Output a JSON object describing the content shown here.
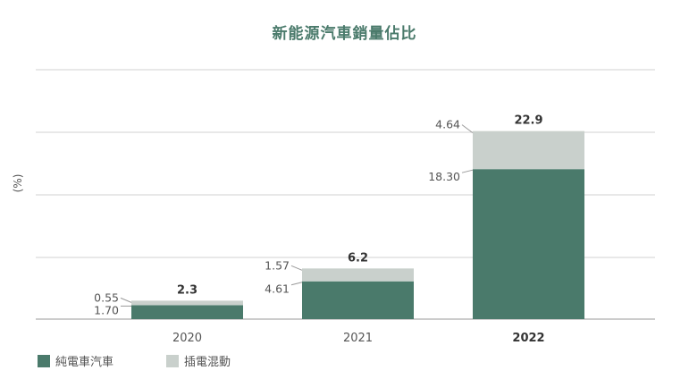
{
  "chart_data": {
    "type": "bar",
    "stacked": true,
    "title": "新能源汽車銷量佔比",
    "ylabel": "(%)",
    "xlabel": "",
    "categories": [
      "2020",
      "2021",
      "2022"
    ],
    "bold_categories": [
      "2022"
    ],
    "ylim": [
      0,
      30
    ],
    "grid": true,
    "legend_position": "bottom-left",
    "series": [
      {
        "name": "純電車汽車",
        "color": "#4a7a6b",
        "values": [
          1.7,
          4.61,
          18.3
        ],
        "labels": [
          "1.70",
          "4.61",
          "18.30"
        ]
      },
      {
        "name": "插電混動",
        "color": "#c9d0cc",
        "values": [
          0.55,
          1.57,
          4.64
        ],
        "labels": [
          "0.55",
          "1.57",
          "4.64"
        ]
      }
    ],
    "totals": [
      "2.3",
      "6.2",
      "22.9"
    ]
  }
}
